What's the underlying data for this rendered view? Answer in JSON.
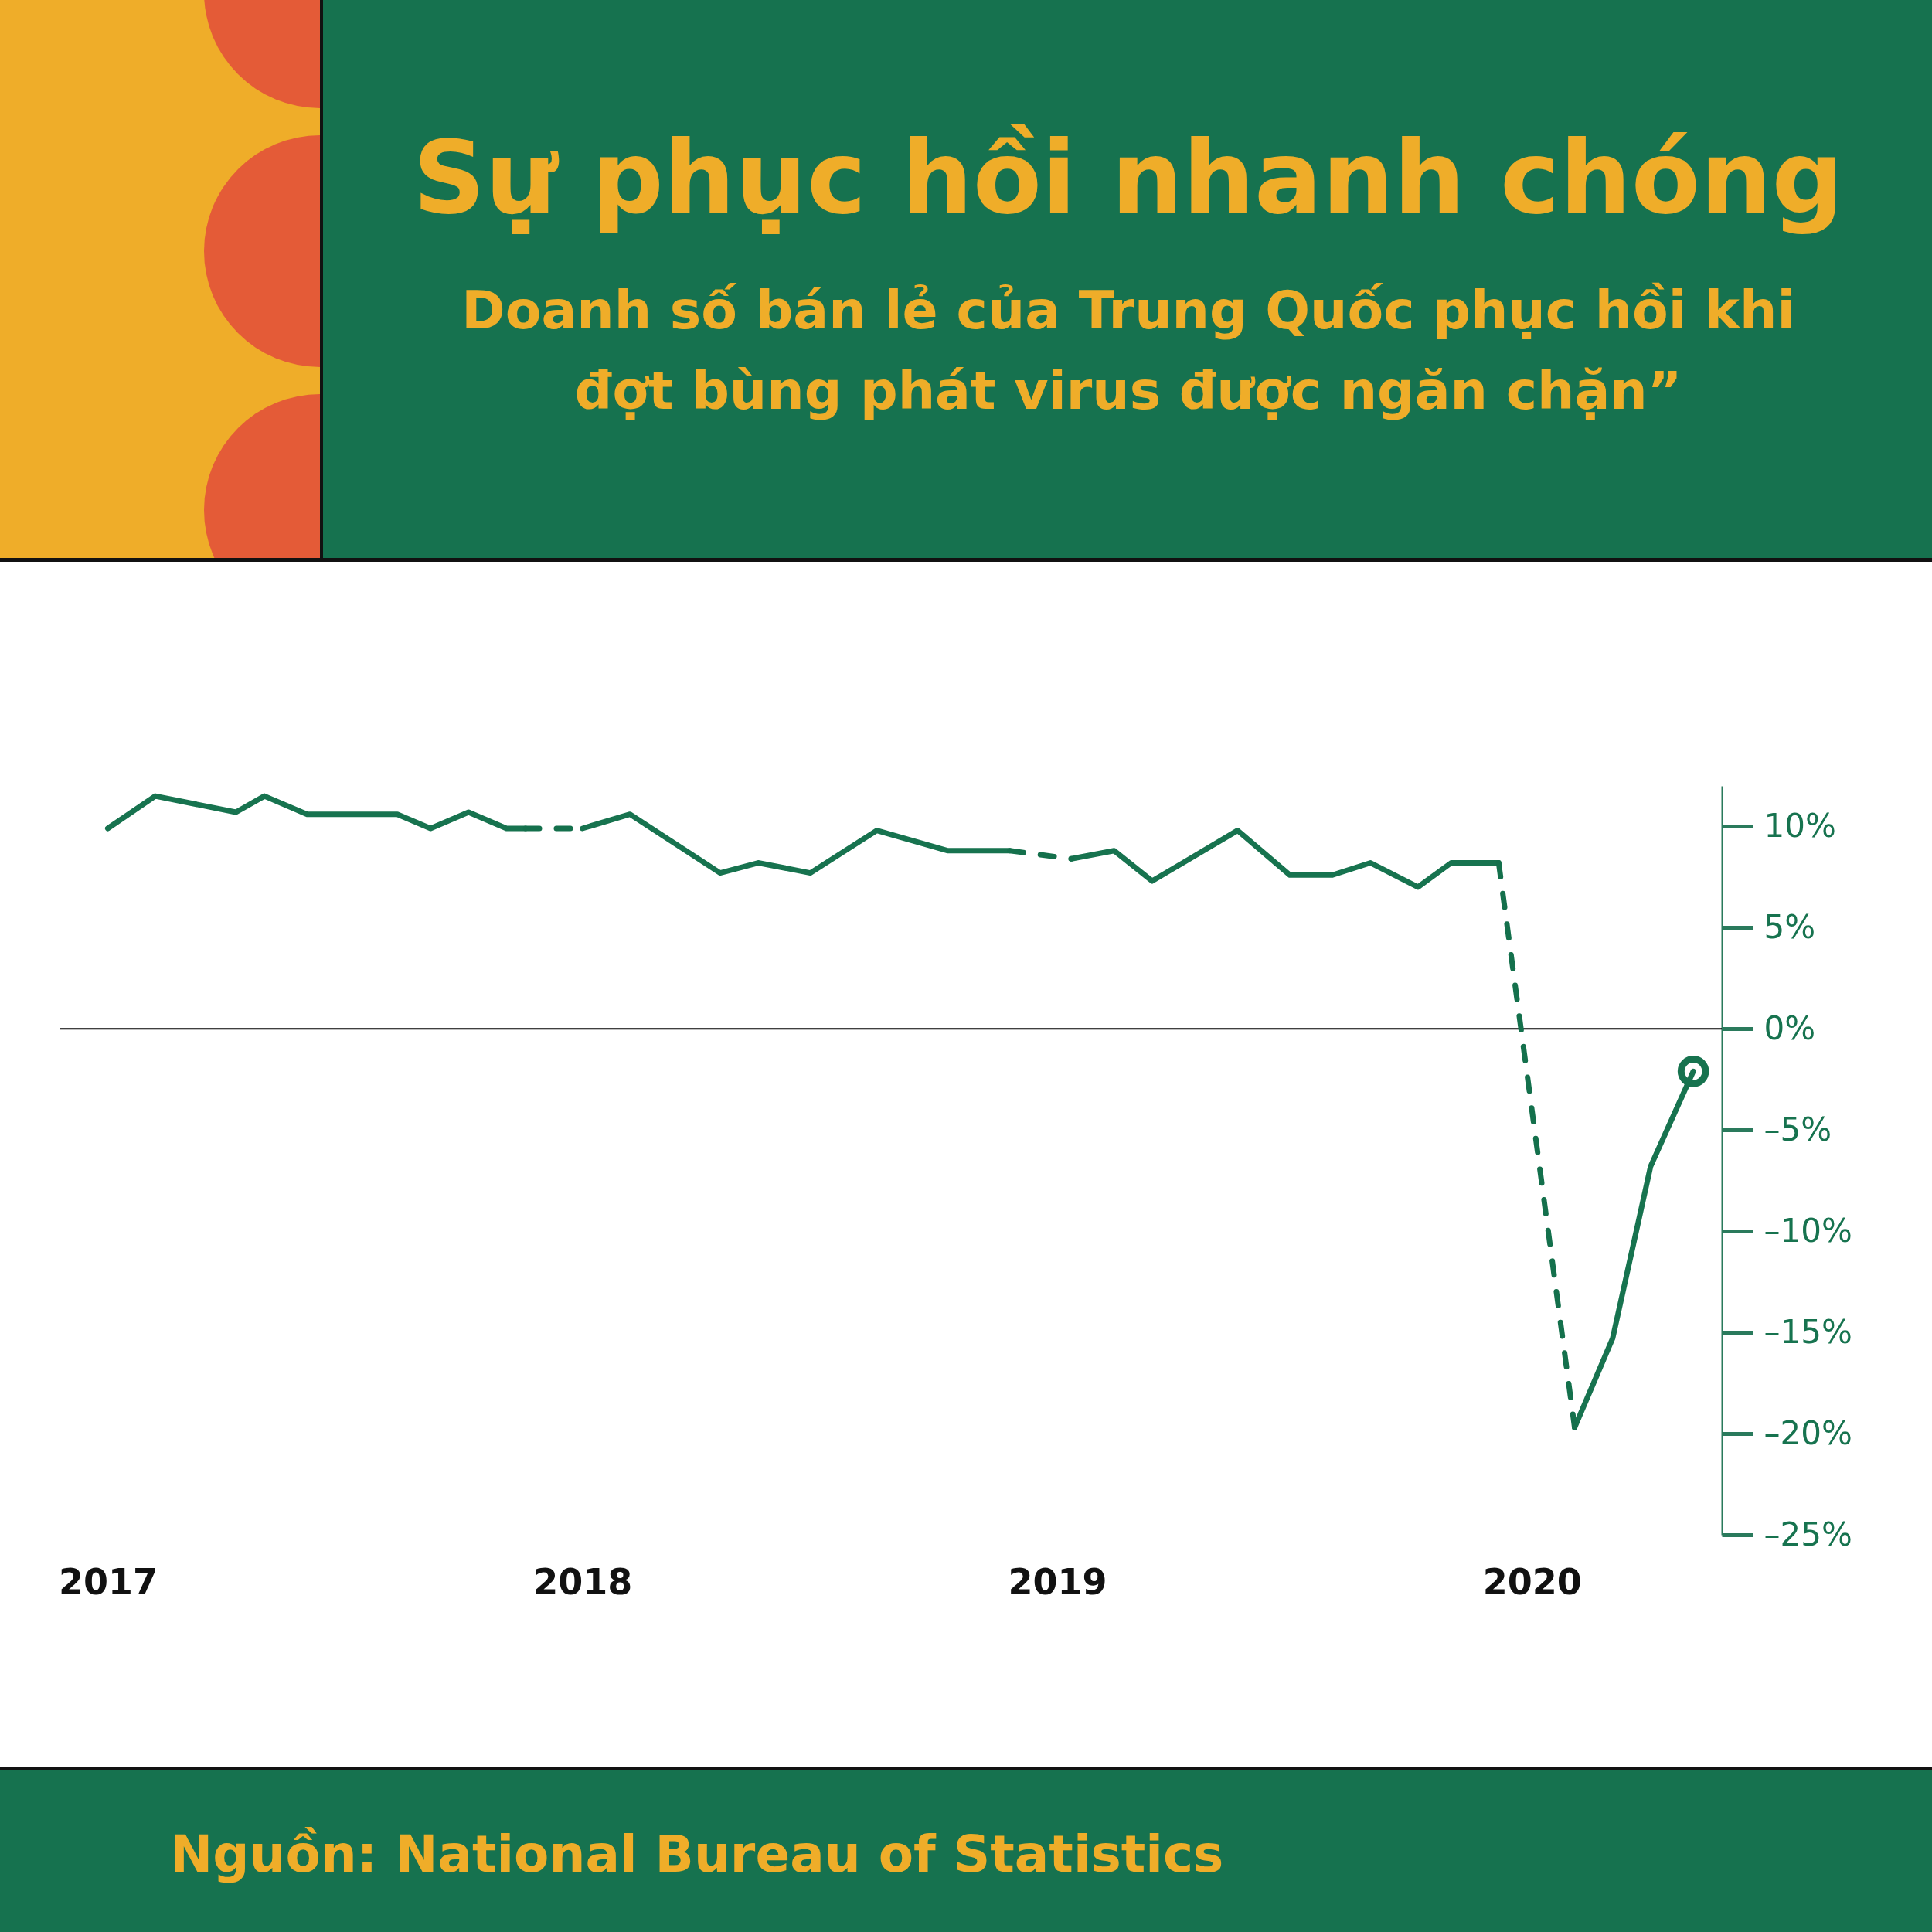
{
  "chart_data": {
    "type": "line",
    "title": "Sự phục hồi nhanh chóng",
    "subtitle": "Doanh số bán lẻ của Trung Quốc phục hồi khi đợt bùng phát virus được ngăn chặn”",
    "annotations": [
      "Nguồn: National Bureau of Statistics"
    ],
    "xlim": [
      2016.9,
      2020.4
    ],
    "xticks": [
      2017,
      2018,
      2019,
      2020
    ],
    "ylim": [
      -25,
      12
    ],
    "yticks": [
      {
        "value": 10,
        "label": "10%"
      },
      {
        "value": 5,
        "label": "5%"
      },
      {
        "value": 0,
        "label": "0%"
      },
      {
        "value": -5,
        "label": "–5%"
      },
      {
        "value": -10,
        "label": "–10%"
      },
      {
        "value": -15,
        "label": "–15%"
      },
      {
        "value": -20,
        "label": "–20%"
      },
      {
        "value": -25,
        "label": "–25%"
      }
    ],
    "ref_lines": [
      {
        "axis": "y",
        "value": 0,
        "color": "#000000"
      }
    ],
    "series": [
      {
        "type": "line",
        "line_style": "solid",
        "color": "#17734f",
        "x": [
          2017.0,
          2017.1,
          2017.27,
          2017.33,
          2017.42,
          2017.61,
          2017.68,
          2017.76,
          2017.84,
          2017.88,
          2017.94,
          2018.0,
          2018.1,
          2018.29,
          2018.37,
          2018.48,
          2018.62,
          2018.77,
          2018.9,
          2018.96,
          2019.03,
          2019.12,
          2019.2,
          2019.38,
          2019.49,
          2019.58,
          2019.66,
          2019.76,
          2019.83,
          2019.93,
          2020.01,
          2020.09,
          2020.17,
          2020.25,
          2020.34
        ],
        "values": [
          9.9,
          11.5,
          10.7,
          11.5,
          10.6,
          10.6,
          9.9,
          10.7,
          9.9,
          9.9,
          null,
          9.9,
          10.6,
          7.7,
          8.2,
          7.7,
          9.8,
          8.8,
          8.8,
          null,
          8.4,
          8.8,
          7.3,
          9.8,
          7.6,
          7.6,
          8.2,
          7.0,
          8.2,
          8.2,
          null,
          -19.7,
          -15.3,
          -6.8,
          -2.1
        ]
      },
      {
        "type": "line",
        "line_style": "dashed",
        "color": "#14704c",
        "x": [
          2017.88,
          2018.0,
          2018.45,
          2018.9,
          2019.03,
          2019.5,
          2019.93,
          2020.09
        ],
        "values": [
          9.9,
          9.9,
          null,
          8.8,
          8.4,
          null,
          8.2,
          -19.7
        ]
      },
      {
        "type": "scatter",
        "marker": "circle",
        "color": "#17734f",
        "x": [
          2020.34
        ],
        "values": [
          -2.1
        ]
      }
    ]
  }
}
